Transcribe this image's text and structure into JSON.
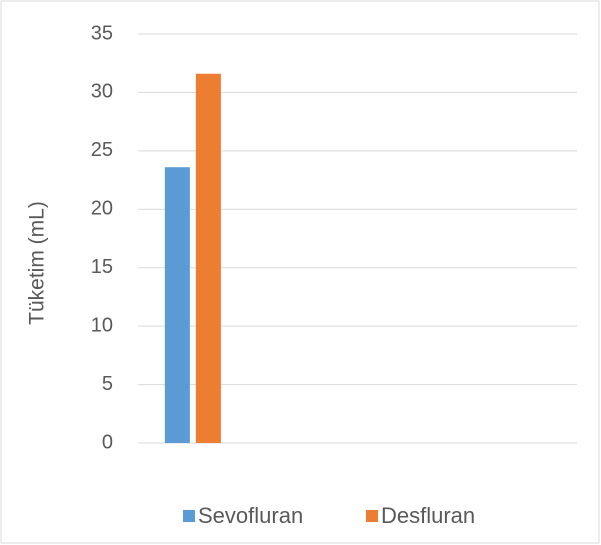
{
  "chart_data": {
    "type": "bar",
    "categories": [
      null
    ],
    "series": [
      {
        "name": "Sevofluran",
        "color": "#5b9bd5",
        "values": [
          23.6
        ]
      },
      {
        "name": "Desfluran",
        "color": "#ed7d31",
        "values": [
          31.6
        ]
      }
    ],
    "y_label": "Tüketim (mL)",
    "ylim": [
      0,
      35
    ],
    "yticks": [
      0,
      5,
      10,
      15,
      20,
      25,
      30,
      35
    ],
    "grid": true,
    "legend": "bottom"
  }
}
